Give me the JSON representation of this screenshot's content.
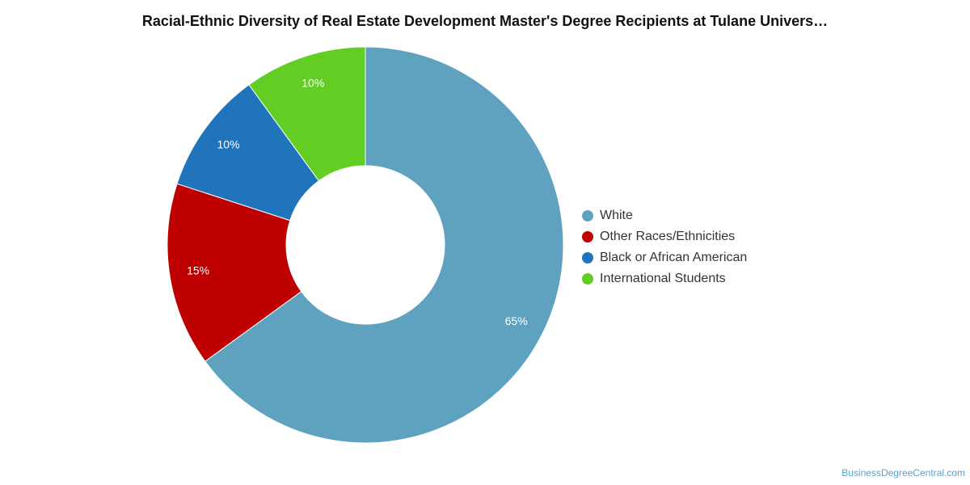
{
  "chart_data": {
    "type": "pie",
    "title": "Racial-Ethnic Diversity of Real Estate Development Master's Degree Recipients at Tulane Univers…",
    "donut": true,
    "legend_position": "right",
    "categories": [
      "White",
      "Other Races/Ethnicities",
      "Black or African American",
      "International Students"
    ],
    "values": [
      65,
      15,
      10,
      10
    ],
    "labels": [
      "65%",
      "15%",
      "10%",
      "10%"
    ],
    "colors": [
      "#5fa2c0",
      "#bf0000",
      "#1f74bb",
      "#62ce24"
    ]
  },
  "watermark": "BusinessDegreeCentral.com"
}
